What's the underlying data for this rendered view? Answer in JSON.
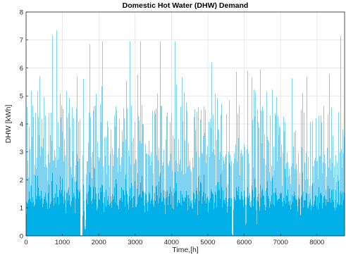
{
  "chart_data": {
    "type": "bar",
    "title": "Domestic Hot Water (DHW) Demand",
    "xlabel": "Time,[h]",
    "ylabel": "DHW [kWh]",
    "xlim": [
      0,
      8760
    ],
    "ylim": [
      0,
      8
    ],
    "xticks": [
      0,
      1000,
      2000,
      3000,
      4000,
      5000,
      6000,
      7000,
      8000
    ],
    "yticks": [
      0,
      1,
      2,
      3,
      4,
      5,
      6,
      7,
      8
    ],
    "grid": true,
    "bar_color": "#00b0e6",
    "series": [
      {
        "values_note": "hourly series, 8760 points; notable peaks read from figure",
        "peaks": [
          {
            "x": 720,
            "y": 7.15
          },
          {
            "x": 850,
            "y": 7.35
          },
          {
            "x": 1750,
            "y": 6.85
          },
          {
            "x": 2100,
            "y": 6.95
          },
          {
            "x": 2850,
            "y": 6.95
          },
          {
            "x": 3150,
            "y": 6.95
          },
          {
            "x": 3700,
            "y": 6.95
          },
          {
            "x": 4100,
            "y": 6.95
          },
          {
            "x": 5100,
            "y": 6.2
          },
          {
            "x": 6100,
            "y": 5.9
          },
          {
            "x": 6450,
            "y": 5.95
          },
          {
            "x": 8650,
            "y": 7.15
          }
        ]
      }
    ]
  }
}
